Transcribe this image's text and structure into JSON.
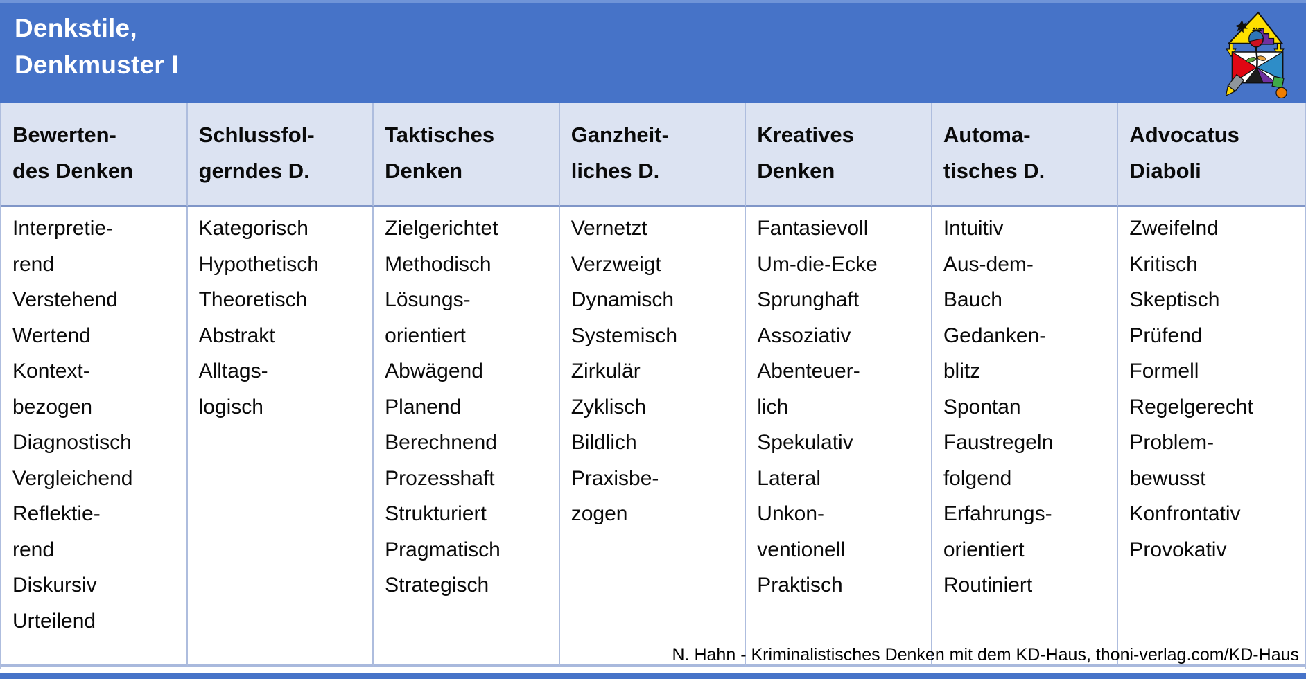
{
  "slide": {
    "title_line1": "Denkstile,",
    "title_line2": "Denkmuster I",
    "footer": "N. Hahn - Kriminalistisches Denken mit dem KD-Haus, thoni-verlag.com/KD-Haus",
    "logo_name": "KD-Haus logo"
  },
  "colors": {
    "band_blue": "#4673C8",
    "band_blue_light_edge": "#6F94D8",
    "header_fill": "#DCE3F2",
    "column_divider": "#AEBDDE",
    "header_underline": "#8096C8",
    "table_bottom_border": "#A9B9DD",
    "title_text": "#FFFFFF",
    "body_text": "#0A0A0A"
  },
  "table": {
    "columns": [
      {
        "header_lines": [
          "Bewerten-",
          "des Denken"
        ],
        "item_lines": [
          "Interpretie-",
          "rend",
          "Verstehend",
          "Wertend",
          "Kontext-",
          "bezogen",
          "Diagnostisch",
          "Vergleichend",
          "Reflektie-",
          "rend",
          "Diskursiv",
          "Urteilend"
        ]
      },
      {
        "header_lines": [
          "Schlussfol-",
          "gerndes D."
        ],
        "item_lines": [
          "Kategorisch",
          "Hypothetisch",
          "Theoretisch",
          "Abstrakt",
          "Alltags-",
          "logisch"
        ]
      },
      {
        "header_lines": [
          "Taktisches",
          "Denken"
        ],
        "item_lines": [
          "Zielgerichtet",
          "Methodisch",
          "Lösungs-",
          "orientiert",
          "Abwägend",
          "Planend",
          "Berechnend",
          "Prozesshaft",
          "Strukturiert",
          "Pragmatisch",
          "Strategisch"
        ]
      },
      {
        "header_lines": [
          "Ganzheit-",
          "liches D."
        ],
        "item_lines": [
          "Vernetzt",
          "Verzweigt",
          "Dynamisch",
          "Systemisch",
          "Zirkulär",
          "Zyklisch",
          "Bildlich",
          "Praxisbe-",
          "zogen"
        ]
      },
      {
        "header_lines": [
          "Kreatives",
          "Denken"
        ],
        "item_lines": [
          "Fantasievoll",
          "Um-die-Ecke",
          "Sprunghaft",
          "Assoziativ",
          "Abenteuer-",
          "lich",
          "Spekulativ",
          "Lateral",
          "Unkon-",
          "ventionell",
          "Praktisch"
        ]
      },
      {
        "header_lines": [
          "Automa-",
          "tisches D."
        ],
        "item_lines": [
          "Intuitiv",
          "Aus-dem-",
          "Bauch",
          "Gedanken-",
          "blitz",
          "Spontan",
          "Faustregeln",
          "folgend",
          "Erfahrungs-",
          "orientiert",
          "Routiniert"
        ]
      },
      {
        "header_lines": [
          "Advocatus",
          "Diaboli"
        ],
        "item_lines": [
          "Zweifelnd",
          "Kritisch",
          "Skeptisch",
          "Prüfend",
          "Formell",
          "Regelgerecht",
          "Problem-",
          "bewusst",
          "Konfrontativ",
          "Provokativ"
        ]
      }
    ]
  }
}
